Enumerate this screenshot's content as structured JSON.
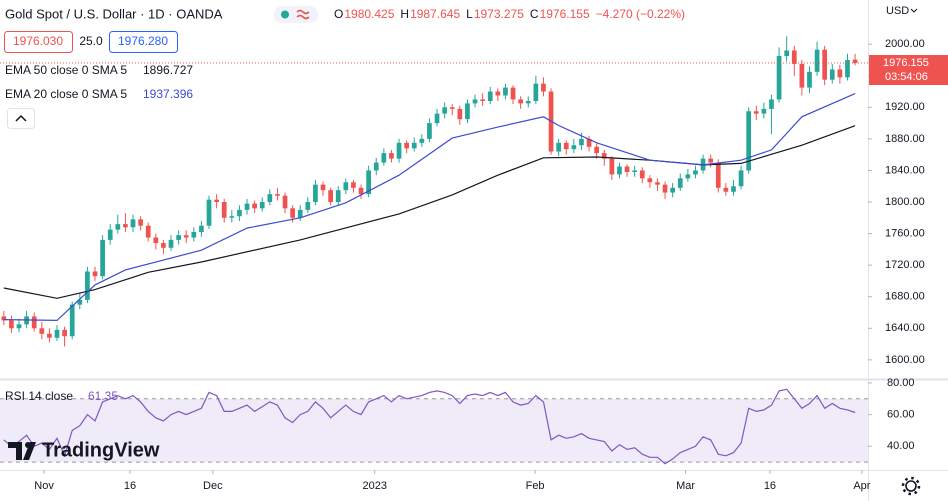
{
  "branding": "TradingView",
  "chart_data": [
    {
      "type": "candlestick",
      "title": "Gold Spot / U.S. Dollar · 1D · OANDA",
      "ohlc_labels": [
        "O",
        "H",
        "L",
        "C"
      ],
      "change_label": "−4.270 (−0.22%)",
      "bid": "1976.030",
      "spread": "25.0",
      "ask": "1976.280",
      "currency": "USD",
      "countdown": "03:54:06",
      "up_color": "#26a69a",
      "down_color": "#ef5350",
      "open": [
        1655,
        1650,
        1640,
        1645,
        1655,
        1640,
        1633,
        1628,
        1638,
        1630,
        1670,
        1676,
        1712,
        1706,
        1752,
        1765,
        1772,
        1768,
        1778,
        1770,
        1755,
        1748,
        1742,
        1752,
        1758,
        1755,
        1762,
        1770,
        1803,
        1800,
        1780,
        1782,
        1790,
        1798,
        1792,
        1800,
        1810,
        1808,
        1792,
        1780,
        1790,
        1800,
        1822,
        1815,
        1800,
        1815,
        1825,
        1818,
        1810,
        1840,
        1850,
        1862,
        1855,
        1875,
        1868,
        1875,
        1880,
        1900,
        1912,
        1920,
        1918,
        1905,
        1925,
        1930,
        1928,
        1940,
        1935,
        1945,
        1930,
        1925,
        1928,
        1950,
        1940,
        1864,
        1875,
        1867,
        1872,
        1880,
        1870,
        1862,
        1855,
        1835,
        1845,
        1838,
        1840,
        1830,
        1825,
        1822,
        1812,
        1818,
        1830,
        1835,
        1840,
        1855,
        1850,
        1818,
        1813,
        1820,
        1840,
        1915,
        1912,
        1918,
        1930,
        1985,
        1992,
        1975,
        1945,
        1965,
        1993,
        1955,
        1968,
        1958,
        1980.425
      ],
      "high": [
        1662,
        1656,
        1652,
        1662,
        1660,
        1648,
        1640,
        1644,
        1642,
        1674,
        1684,
        1718,
        1718,
        1758,
        1772,
        1784,
        1786,
        1784,
        1782,
        1774,
        1760,
        1752,
        1758,
        1764,
        1764,
        1768,
        1776,
        1808,
        1810,
        1804,
        1790,
        1796,
        1804,
        1802,
        1806,
        1816,
        1818,
        1812,
        1796,
        1796,
        1806,
        1828,
        1826,
        1818,
        1820,
        1830,
        1828,
        1822,
        1846,
        1856,
        1868,
        1866,
        1880,
        1878,
        1882,
        1886,
        1906,
        1918,
        1926,
        1924,
        1922,
        1930,
        1936,
        1938,
        1946,
        1944,
        1950,
        1948,
        1934,
        1934,
        1960,
        1958,
        1944,
        1880,
        1878,
        1880,
        1888,
        1884,
        1874,
        1866,
        1858,
        1850,
        1848,
        1846,
        1844,
        1834,
        1830,
        1826,
        1824,
        1836,
        1842,
        1846,
        1860,
        1860,
        1854,
        1824,
        1828,
        1846,
        1920,
        1922,
        1926,
        1936,
        1996,
        2010,
        1998,
        1980,
        1972,
        2003,
        1998,
        1975,
        1974,
        1988,
        1987.645
      ],
      "low": [
        1644,
        1634,
        1635,
        1640,
        1636,
        1626,
        1622,
        1624,
        1617,
        1626,
        1664,
        1672,
        1700,
        1702,
        1746,
        1760,
        1762,
        1762,
        1764,
        1750,
        1740,
        1734,
        1738,
        1746,
        1748,
        1750,
        1756,
        1766,
        1792,
        1774,
        1774,
        1776,
        1784,
        1786,
        1788,
        1796,
        1802,
        1786,
        1774,
        1776,
        1786,
        1796,
        1808,
        1796,
        1796,
        1810,
        1812,
        1804,
        1806,
        1834,
        1846,
        1850,
        1850,
        1862,
        1864,
        1870,
        1876,
        1896,
        1906,
        1910,
        1898,
        1900,
        1920,
        1922,
        1924,
        1928,
        1930,
        1924,
        1918,
        1920,
        1924,
        1934,
        1860,
        1858,
        1860,
        1862,
        1866,
        1864,
        1855,
        1846,
        1828,
        1830,
        1832,
        1832,
        1824,
        1818,
        1814,
        1804,
        1806,
        1814,
        1826,
        1830,
        1836,
        1844,
        1812,
        1808,
        1808,
        1816,
        1836,
        1904,
        1906,
        1886,
        1926,
        1978,
        1960,
        1935,
        1938,
        1960,
        1948,
        1950,
        1950,
        1954,
        1973.275
      ],
      "close": [
        1650,
        1640,
        1645,
        1655,
        1640,
        1633,
        1628,
        1638,
        1630,
        1670,
        1676,
        1712,
        1706,
        1752,
        1765,
        1772,
        1768,
        1778,
        1770,
        1755,
        1748,
        1742,
        1752,
        1758,
        1755,
        1762,
        1770,
        1803,
        1800,
        1780,
        1782,
        1790,
        1798,
        1792,
        1800,
        1810,
        1808,
        1792,
        1780,
        1790,
        1800,
        1822,
        1815,
        1800,
        1815,
        1825,
        1818,
        1810,
        1840,
        1850,
        1862,
        1855,
        1875,
        1868,
        1875,
        1880,
        1900,
        1912,
        1920,
        1918,
        1905,
        1925,
        1930,
        1928,
        1940,
        1935,
        1945,
        1930,
        1925,
        1928,
        1950,
        1940,
        1864,
        1875,
        1867,
        1872,
        1880,
        1870,
        1862,
        1855,
        1835,
        1845,
        1838,
        1840,
        1830,
        1825,
        1822,
        1812,
        1818,
        1830,
        1835,
        1840,
        1855,
        1850,
        1818,
        1813,
        1820,
        1840,
        1915,
        1912,
        1918,
        1930,
        1985,
        1992,
        1975,
        1945,
        1965,
        1993,
        1955,
        1968,
        1958,
        1980,
        1976.155
      ],
      "series": [
        {
          "name": "EMA 50 close 0 SMA 5",
          "color": "#131722",
          "x": [
            0,
            7,
            12,
            19,
            26,
            39,
            52,
            59,
            65,
            71,
            78,
            85,
            92,
            97,
            105,
            112
          ],
          "values": [
            1691,
            1678,
            1689,
            1711,
            1724,
            1752,
            1785,
            1809,
            1834,
            1856,
            1857,
            1853,
            1847,
            1849,
            1872,
            1896.727
          ]
        },
        {
          "name": "EMA 20 close 0 SMA 5",
          "color": "#3e4bd1",
          "x": [
            0,
            7,
            12,
            16,
            26,
            32,
            39,
            45,
            52,
            59,
            65,
            71,
            73,
            78,
            85,
            92,
            97,
            101,
            105,
            112
          ],
          "values": [
            1651,
            1650,
            1695,
            1714,
            1739,
            1767,
            1780,
            1799,
            1834,
            1881,
            1895,
            1908,
            1897,
            1875,
            1853,
            1847,
            1853,
            1866,
            1908,
            1937.396
          ]
        }
      ],
      "xlim": [
        -0.5,
        113.7
      ],
      "ylim": [
        1577,
        2056
      ],
      "yticks": [
        {
          "value": 1600,
          "label": "1600.00"
        },
        {
          "value": 1640,
          "label": "1640.00"
        },
        {
          "value": 1680,
          "label": "1680.00"
        },
        {
          "value": 1720,
          "label": "1720.00"
        },
        {
          "value": 1760,
          "label": "1760.00"
        },
        {
          "value": 1800,
          "label": "1800.00"
        },
        {
          "value": 1840,
          "label": "1840.00"
        },
        {
          "value": 1880,
          "label": "1880.00"
        },
        {
          "value": 1920,
          "label": "1920.00"
        },
        {
          "value": 1960,
          "label": "1960.00"
        },
        {
          "value": 2000,
          "label": "2000.00"
        }
      ],
      "xticks": [
        {
          "value": 5.3,
          "label": "Nov"
        },
        {
          "value": 16.6,
          "label": "16"
        },
        {
          "value": 27.5,
          "label": "Dec"
        },
        {
          "value": 48.8,
          "label": "2023"
        },
        {
          "value": 69.9,
          "label": "Feb"
        },
        {
          "value": 89.7,
          "label": "Mar"
        },
        {
          "value": 100.8,
          "label": "16"
        },
        {
          "value": 112.9,
          "label": "Apr"
        }
      ]
    },
    {
      "type": "line",
      "name": "RSI 14 close",
      "color": "#7e57c2",
      "bands": [
        30,
        70
      ],
      "ylim": [
        25,
        80.6
      ],
      "yticks": [
        {
          "value": 40,
          "label": "40.00"
        },
        {
          "value": 60,
          "label": "60.00"
        },
        {
          "value": 80,
          "label": "80.00"
        }
      ],
      "values": [
        44,
        40,
        43,
        47,
        40,
        42,
        38,
        45,
        34,
        50,
        53,
        60,
        56,
        68,
        70,
        72,
        70,
        72,
        68,
        62,
        58,
        56,
        60,
        62,
        60,
        62,
        64,
        74,
        72,
        62,
        62,
        64,
        66,
        62,
        65,
        68,
        66,
        58,
        55,
        60,
        62,
        68,
        64,
        58,
        62,
        66,
        62,
        60,
        68,
        70,
        72,
        68,
        72,
        70,
        71,
        72,
        74,
        75,
        74,
        72,
        67,
        72,
        73,
        72,
        74,
        72,
        74,
        68,
        66,
        67,
        72,
        68,
        44,
        47,
        45,
        46,
        48,
        45,
        44,
        43,
        37,
        41,
        38,
        39,
        35,
        33,
        33,
        29,
        32,
        36,
        38,
        40,
        46,
        44,
        35,
        34,
        36,
        42,
        64,
        62,
        63,
        66,
        75,
        76,
        70,
        64,
        67,
        72,
        64,
        67,
        64,
        63,
        61.35
      ]
    }
  ]
}
